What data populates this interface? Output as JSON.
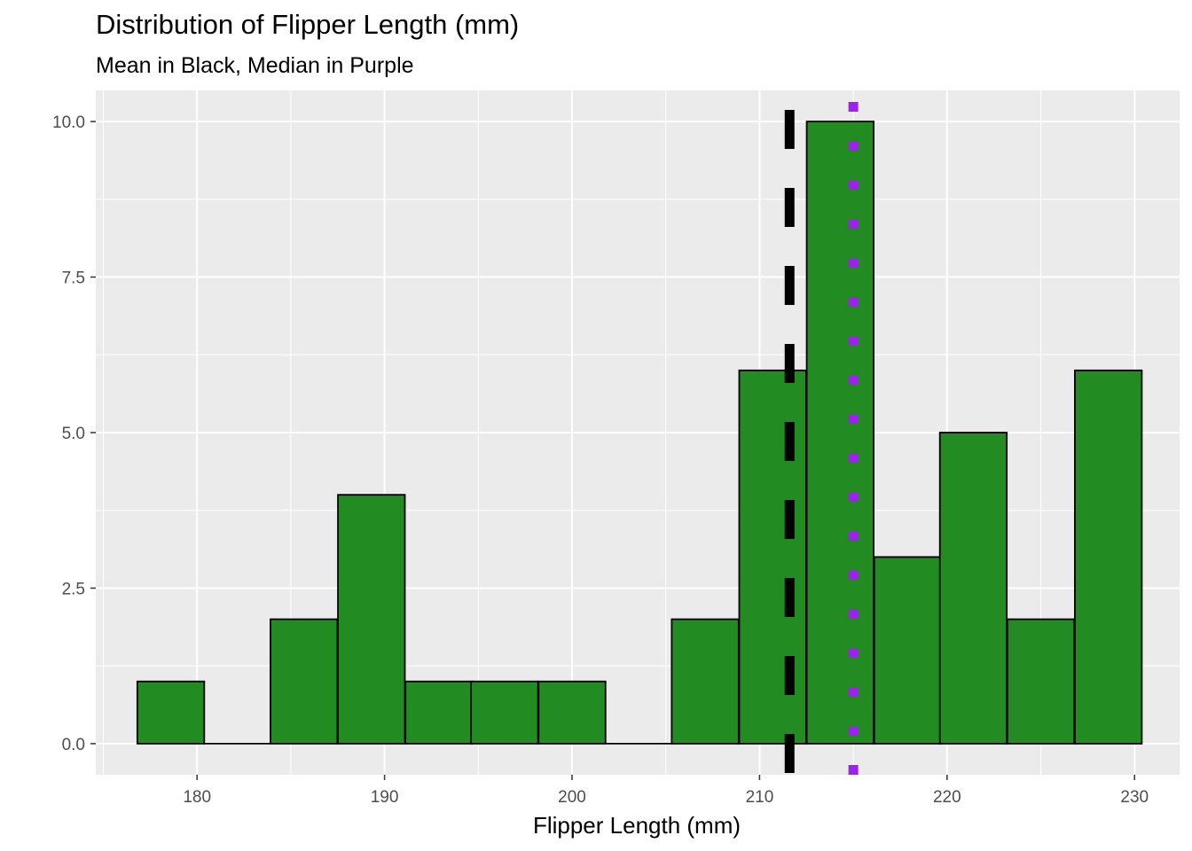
{
  "chart_data": {
    "type": "bar",
    "title": "Distribution of Flipper Length (mm)",
    "subtitle": "Mean in Black, Median in Purple",
    "xlabel": "Flipper Length (mm)",
    "ylabel": "",
    "xlim": [
      174.6,
      232.4
    ],
    "ylim": [
      -0.5,
      10.5
    ],
    "x_ticks": [
      180,
      190,
      200,
      210,
      220,
      230
    ],
    "x_tick_labels": [
      "180",
      "190",
      "200",
      "210",
      "220",
      "230"
    ],
    "y_ticks": [
      0,
      2.5,
      5,
      7.5,
      10
    ],
    "y_tick_labels": [
      "0.0",
      "2.5",
      "5.0",
      "7.5",
      "10.0"
    ],
    "bin_width": 3.57,
    "bins": [
      {
        "center": 178.6,
        "count": 1
      },
      {
        "center": 182.1,
        "count": 0
      },
      {
        "center": 185.7,
        "count": 2
      },
      {
        "center": 189.3,
        "count": 4
      },
      {
        "center": 192.9,
        "count": 1
      },
      {
        "center": 196.4,
        "count": 1
      },
      {
        "center": 200.0,
        "count": 1
      },
      {
        "center": 203.6,
        "count": 0
      },
      {
        "center": 207.1,
        "count": 2
      },
      {
        "center": 210.7,
        "count": 6
      },
      {
        "center": 214.3,
        "count": 10
      },
      {
        "center": 217.9,
        "count": 3
      },
      {
        "center": 221.4,
        "count": 5
      },
      {
        "center": 225.0,
        "count": 2
      },
      {
        "center": 228.6,
        "count": 6
      }
    ],
    "mean": 211.6,
    "median": 215,
    "colors": {
      "bar_fill": "#228B22",
      "bar_outline": "#000000",
      "mean_line": "#000000",
      "median_line": "#A020F0",
      "panel_bg": "#EBEBEB",
      "grid": "#FFFFFF"
    }
  }
}
